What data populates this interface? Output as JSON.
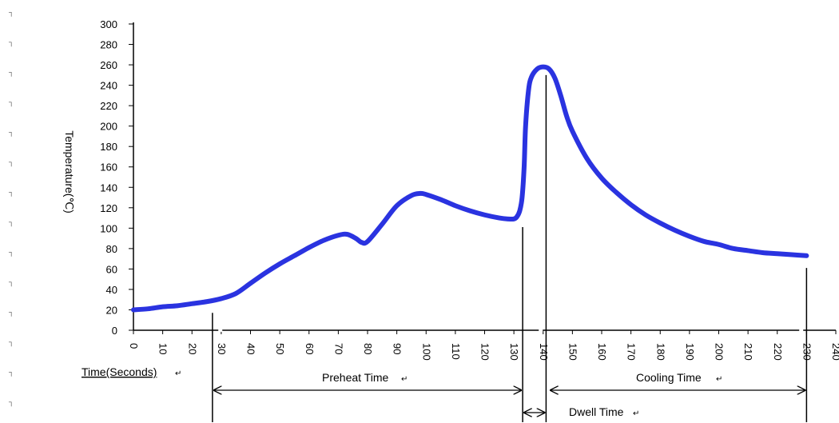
{
  "chart_data": {
    "type": "line",
    "title": "",
    "ylabel": "Temperature(℃)",
    "xlabel": "Time(Seconds)",
    "xlim": [
      0,
      240
    ],
    "ylim": [
      0,
      300
    ],
    "x_ticks": [
      0,
      10,
      20,
      30,
      40,
      50,
      60,
      70,
      80,
      90,
      100,
      110,
      120,
      130,
      140,
      150,
      160,
      170,
      180,
      190,
      200,
      210,
      220,
      230,
      240
    ],
    "y_ticks": [
      0,
      20,
      40,
      60,
      80,
      100,
      120,
      140,
      160,
      180,
      200,
      220,
      240,
      260,
      280,
      300
    ],
    "grid": false,
    "legend": "none",
    "series": [
      {
        "color": "#2a33e0",
        "x": [
          0,
          5,
          10,
          15,
          20,
          25,
          30,
          35,
          40,
          45,
          50,
          55,
          60,
          65,
          70,
          73,
          76,
          78,
          80,
          85,
          90,
          95,
          98,
          100,
          105,
          110,
          115,
          120,
          125,
          128,
          130,
          131,
          132,
          132.8,
          133.5,
          134,
          135,
          136,
          138,
          140,
          142,
          144,
          146,
          148,
          150,
          155,
          160,
          165,
          170,
          175,
          180,
          185,
          190,
          195,
          200,
          205,
          210,
          215,
          220,
          225,
          230
        ],
        "y": [
          20,
          21,
          23,
          24,
          26,
          28,
          31,
          36,
          46,
          56,
          65,
          73,
          81,
          88,
          93,
          94,
          90,
          86,
          87,
          104,
          122,
          132,
          134,
          133,
          128,
          122,
          117,
          113,
          110,
          109,
          109,
          111,
          117,
          130,
          160,
          200,
          235,
          248,
          256,
          258,
          256,
          247,
          230,
          210,
          195,
          168,
          149,
          135,
          123,
          113,
          105,
          98,
          92,
          87,
          84,
          80,
          78,
          76,
          75,
          74,
          73
        ]
      }
    ],
    "annotations": {
      "preheat": "Preheat Time",
      "cooling": "Cooling Time",
      "dwell": "Dwell Time",
      "preheat_range": [
        27,
        133
      ],
      "dwell_range": [
        133,
        141
      ],
      "cooling_range": [
        142,
        230
      ],
      "marker_lines": [
        {
          "x": 27,
          "top": 17
        },
        {
          "x": 133,
          "top": 101
        },
        {
          "x": 141,
          "top": 250
        },
        {
          "x": 230,
          "top": 61
        }
      ]
    }
  }
}
